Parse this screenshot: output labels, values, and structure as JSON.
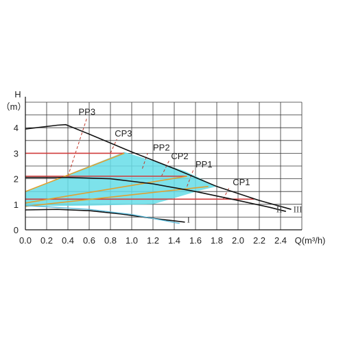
{
  "chart_data": {
    "type": "line",
    "xlabel": "Q(m³/h)",
    "ylabel_top": "H",
    "ylabel_unit": "（m）",
    "xlim": [
      0,
      2.6
    ],
    "ylim": [
      0,
      5
    ],
    "x_ticks": [
      "0.0",
      "0.2",
      "0.4",
      "0.6",
      "0.8",
      "1.0",
      "1.2",
      "1.4",
      "1.6",
      "1.8",
      "2.0",
      "2.2",
      "2.4"
    ],
    "y_ticks": [
      "0",
      "1",
      "2",
      "3",
      "4"
    ],
    "grid": true,
    "speed_curves": [
      {
        "name": "III",
        "color": "#111111",
        "points": [
          [
            0,
            3.95
          ],
          [
            0.3,
            4.1
          ],
          [
            0.38,
            4.12
          ],
          [
            0.6,
            3.75
          ],
          [
            1.0,
            3.05
          ],
          [
            1.4,
            2.4
          ],
          [
            1.8,
            1.7
          ],
          [
            2.2,
            1.15
          ],
          [
            2.5,
            0.8
          ]
        ]
      },
      {
        "name": "II",
        "color": "#111111",
        "points": [
          [
            0,
            2.05
          ],
          [
            0.4,
            2.05
          ],
          [
            0.8,
            2.0
          ],
          [
            1.2,
            1.8
          ],
          [
            1.6,
            1.5
          ],
          [
            2.0,
            1.15
          ],
          [
            2.3,
            0.88
          ],
          [
            2.45,
            0.72
          ]
        ]
      },
      {
        "name": "I",
        "color": "#111111",
        "points": [
          [
            0,
            0.78
          ],
          [
            0.3,
            0.8
          ],
          [
            0.6,
            0.75
          ],
          [
            0.9,
            0.62
          ],
          [
            1.2,
            0.45
          ],
          [
            1.5,
            0.3
          ]
        ]
      }
    ],
    "mode_labels": [
      {
        "name": "PP3",
        "x": 0.5,
        "y": 4.5,
        "color": "#c0392b",
        "guide": [
          [
            0.4,
            2.1
          ],
          [
            0.58,
            4.4
          ]
        ]
      },
      {
        "name": "CP3",
        "x": 0.84,
        "y": 3.65,
        "color": "#c0392b",
        "guide": [
          [
            0.8,
            3.0
          ],
          [
            0.86,
            3.55
          ]
        ]
      },
      {
        "name": "PP2",
        "x": 1.2,
        "y": 3.1,
        "color": "#c0392b",
        "guide": [
          [
            1.1,
            2.4
          ],
          [
            1.15,
            3.0
          ]
        ]
      },
      {
        "name": "CP2",
        "x": 1.37,
        "y": 2.77,
        "color": "#c0392b",
        "guide": [
          [
            1.28,
            2.1
          ],
          [
            1.35,
            2.7
          ]
        ]
      },
      {
        "name": "PP1",
        "x": 1.6,
        "y": 2.45,
        "color": "#c0392b",
        "guide": [
          [
            1.52,
            1.7
          ],
          [
            1.58,
            2.35
          ]
        ]
      },
      {
        "name": "CP1",
        "x": 1.95,
        "y": 1.75,
        "color": "#c0392b",
        "guide": [
          [
            1.86,
            1.2
          ],
          [
            1.92,
            1.68
          ]
        ]
      }
    ],
    "roman_labels": [
      {
        "name": "III",
        "x": 2.52,
        "y": 0.68
      },
      {
        "name": "II",
        "x": 2.36,
        "y": 0.68
      },
      {
        "name": "I",
        "x": 1.52,
        "y": 0.28
      }
    ],
    "cp_lines": [
      {
        "name": "CP3",
        "y": 3.0,
        "x0": 0.0,
        "x1": 0.93,
        "color": "#d03a3a"
      },
      {
        "name": "CP2",
        "y": 2.1,
        "x0": 0.0,
        "x1": 1.52,
        "color": "#d03a3a"
      },
      {
        "name": "CP1",
        "y": 1.2,
        "x0": 0.0,
        "x1": 2.15,
        "color": "#d03a3a"
      }
    ],
    "pp_lines": [
      {
        "name": "PP3",
        "points": [
          [
            0.0,
            1.5
          ],
          [
            0.93,
            3.0
          ]
        ],
        "color": "#e0a030"
      },
      {
        "name": "PP2",
        "points": [
          [
            0.0,
            1.05
          ],
          [
            1.52,
            2.1
          ]
        ],
        "color": "#e0a030"
      },
      {
        "name": "PP1",
        "points": [
          [
            0.0,
            0.92
          ],
          [
            1.72,
            1.7
          ]
        ],
        "color": "#e0a030"
      }
    ],
    "region_fill": "#66dde8",
    "region_points": [
      [
        0.0,
        1.5
      ],
      [
        0.93,
        3.05
      ],
      [
        1.2,
        2.7
      ],
      [
        1.5,
        2.3
      ],
      [
        1.8,
        1.7
      ],
      [
        1.65,
        1.55
      ],
      [
        1.2,
        1.0
      ],
      [
        0.6,
        0.95
      ],
      [
        0.0,
        0.92
      ]
    ]
  }
}
